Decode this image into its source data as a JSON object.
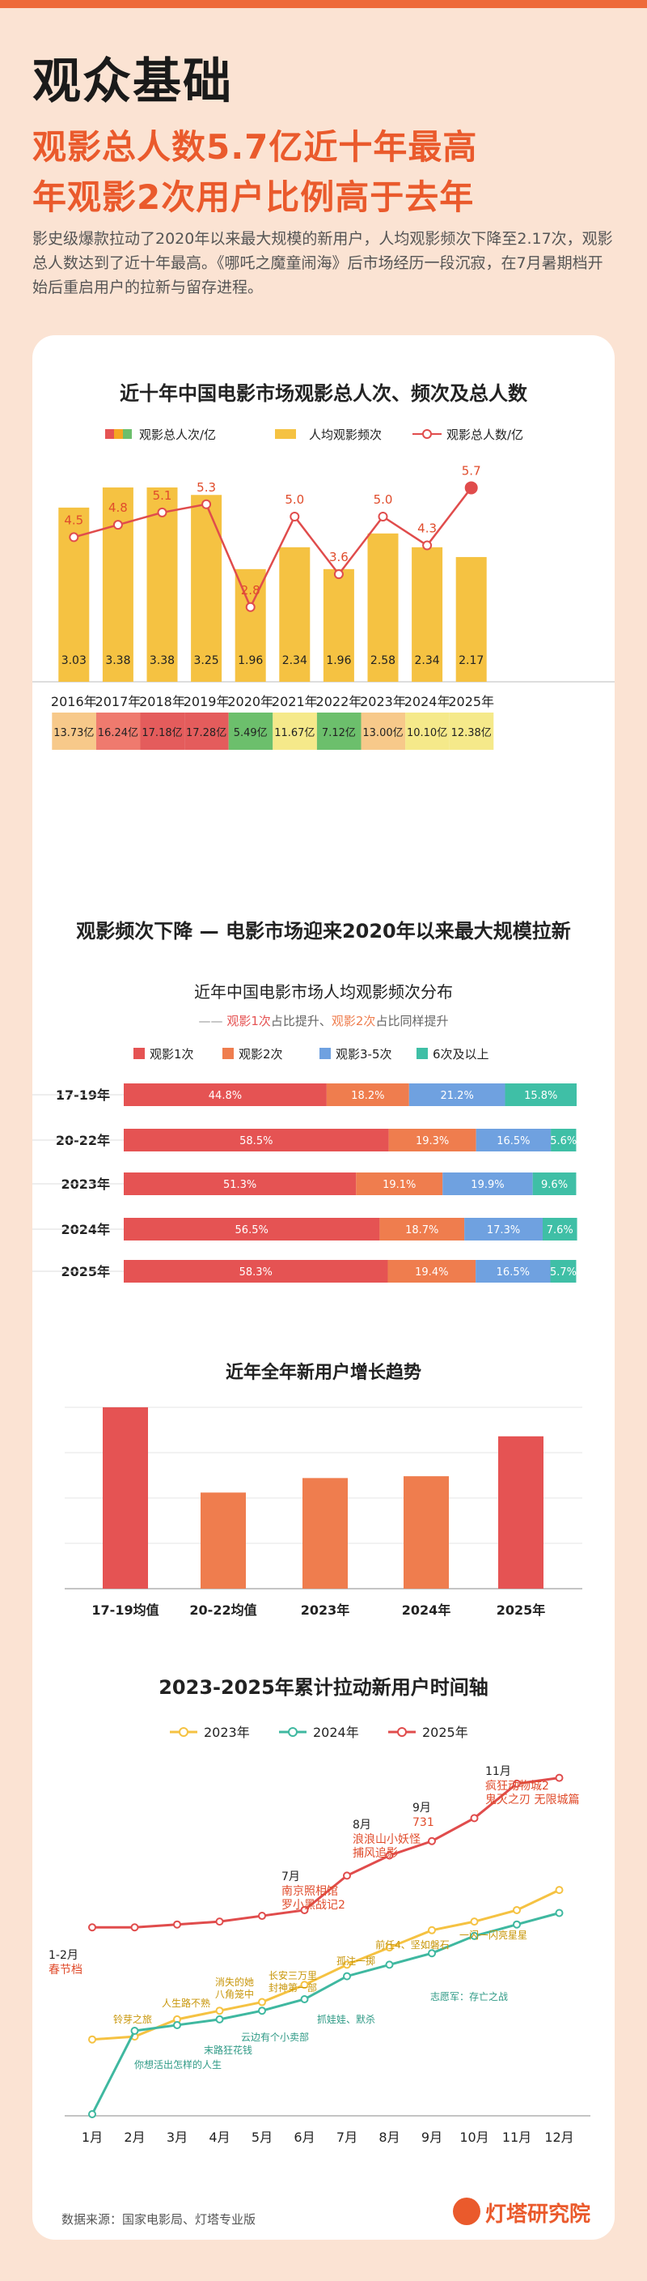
{
  "header": {
    "title": "观众基础",
    "headline_line1": "观影总人数5.7亿近十年最高",
    "headline_line2": "年观影2次用户比例高于去年",
    "description": "影史级爆款拉动了2020年以来最大规模的新用户，人均观影频次下降至2.17次，观影总人数达到了近十年最高。《哪吒之魔童闹海》后市场经历一段沉寂，在7月暑期档开始后重启用户的拉新与留存进程。"
  },
  "footer": {
    "source": "数据来源：国家电影局、灯塔专业版",
    "brand": "灯塔研究院"
  },
  "colors": {
    "accent": "#ea5a2c",
    "bar_yellow": "#f5c242",
    "line_red": "#e04c4c",
    "f1": "#e55353",
    "f2": "#ef7d4e",
    "f35": "#6fa1e0",
    "f6": "#3fbfa6"
  },
  "chart_data": [
    {
      "type": "bar",
      "title": "近十年中国电影市场观影总人次、频次及总人数",
      "legend": [
        "观影总人次/亿",
        "人均观影频次",
        "观影总人数/亿"
      ],
      "categories": [
        "2016年",
        "2017年",
        "2018年",
        "2019年",
        "2020年",
        "2021年",
        "2022年",
        "2023年",
        "2024年",
        "2025年"
      ],
      "series": [
        {
          "name": "人均观影频次",
          "type": "bar",
          "values": [
            3.03,
            3.38,
            3.38,
            3.25,
            1.96,
            2.34,
            1.96,
            2.58,
            2.34,
            2.17
          ],
          "labels": [
            "3.03",
            "3.38",
            "3.38",
            "3.25",
            "1.96",
            "2.34",
            "1.96",
            "2.58",
            "2.34",
            "2.17"
          ]
        },
        {
          "name": "观影总人数/亿",
          "type": "line",
          "values": [
            4.5,
            4.8,
            5.1,
            5.3,
            2.8,
            5.0,
            3.6,
            5.0,
            4.3,
            5.7
          ],
          "labels": [
            "4.5",
            "4.8",
            "5.1",
            "5.3",
            "2.8",
            "5.0",
            "3.6",
            "5.0",
            "4.3",
            "5.7"
          ]
        },
        {
          "name": "观影总人次/亿",
          "type": "table",
          "values": [
            13.73,
            16.24,
            17.18,
            17.28,
            5.49,
            11.67,
            7.12,
            13.0,
            10.1,
            12.38
          ],
          "labels": [
            "13.73亿",
            "16.24亿",
            "17.18亿",
            "17.28亿",
            "5.49亿",
            "11.67亿",
            "7.12亿",
            "13.00亿",
            "10.10亿",
            "12.38亿"
          ],
          "colors": [
            "#f7c98a",
            "#ef7a6e",
            "#e45c5c",
            "#e45c5c",
            "#6cbf6c",
            "#f5e98a",
            "#6cbf6c",
            "#f7c98a",
            "#f5e98a",
            "#f5e98a"
          ]
        }
      ]
    },
    {
      "type": "bar",
      "section_title": "观影频次下降 — 电影市场迎来2020年以来最大规模拉新",
      "title": "近年中国电影市场人均观影频次分布",
      "subtitle_prefix": "—— ",
      "subtitle_hl1": "观影1次",
      "subtitle_mid": "占比提升、",
      "subtitle_hl2": "观影2次",
      "subtitle_end": "占比同样提升",
      "orientation": "horizontal",
      "stacked": true,
      "categories": [
        "17-19年",
        "20-22年",
        "2023年",
        "2024年",
        "2025年"
      ],
      "series": [
        {
          "name": "观影1次",
          "values": [
            44.8,
            58.5,
            51.3,
            56.5,
            58.3
          ],
          "labels": [
            "44.8%",
            "58.5%",
            "51.3%",
            "56.5%",
            "58.3%"
          ]
        },
        {
          "name": "观影2次",
          "values": [
            18.2,
            19.3,
            19.1,
            18.7,
            19.4
          ],
          "labels": [
            "18.2%",
            "19.3%",
            "19.1%",
            "18.7%",
            "19.4%"
          ]
        },
        {
          "name": "观影3-5次",
          "values": [
            21.2,
            16.5,
            19.9,
            17.3,
            16.5
          ],
          "labels": [
            "21.2%",
            "16.5%",
            "19.9%",
            "17.3%",
            "16.5%"
          ]
        },
        {
          "name": "6次及以上",
          "values": [
            15.8,
            5.6,
            9.6,
            7.6,
            5.7
          ],
          "labels": [
            "15.8%",
            "5.6%",
            "9.6%",
            "7.6%",
            "5.7%"
          ]
        }
      ]
    },
    {
      "type": "bar",
      "title": "近年全年新用户增长趋势",
      "categories": [
        "17-19均值",
        "20-22均值",
        "2023年",
        "2024年",
        "2025年"
      ],
      "values": [
        100,
        53,
        61,
        62,
        84
      ],
      "ylim": [
        0,
        110
      ]
    },
    {
      "type": "line",
      "title": "2023-2025年累计拉动新用户时间轴",
      "categories": [
        "1月",
        "2月",
        "3月",
        "4月",
        "5月",
        "6月",
        "7月",
        "8月",
        "9月",
        "10月",
        "11月",
        "12月"
      ],
      "series": [
        {
          "name": "2023年",
          "values": [
            26,
            27,
            33,
            36,
            39,
            45,
            52,
            58,
            64,
            67,
            71,
            78
          ]
        },
        {
          "name": "2024年",
          "values": [
            0,
            29,
            31,
            33,
            36,
            40,
            48,
            52,
            56,
            62,
            66,
            70
          ]
        },
        {
          "name": "2025年",
          "values": [
            65,
            65,
            66,
            67,
            69,
            71,
            83,
            90,
            95,
            103,
            115,
            117
          ]
        }
      ],
      "ylim": [
        0,
        125
      ],
      "highlights": [
        {
          "month": "1-2月",
          "films": "春节档"
        },
        {
          "month": "7月",
          "films": "南京照相馆\n罗小黑战记2"
        },
        {
          "month": "8月",
          "films": "浪浪山小妖怪\n捕风追影"
        },
        {
          "month": "9月",
          "films": "731"
        },
        {
          "month": "11月",
          "films": "疯狂动物城2\n鬼灭之刃 无限城篇"
        }
      ],
      "annotations_2023": [
        "铃芽之旅",
        "人生路不熟",
        "消失的她\n八角笼中",
        "长安三万里\n封神第一部",
        "孤注一掷",
        "前任4、坚如磐石",
        "一闪一闪亮星星"
      ],
      "annotations_2024": [
        "你想活出怎样的人生",
        "末路狂花钱",
        "云边有个小卖部",
        "抓娃娃、默杀",
        "志愿军：存亡之战"
      ]
    }
  ]
}
